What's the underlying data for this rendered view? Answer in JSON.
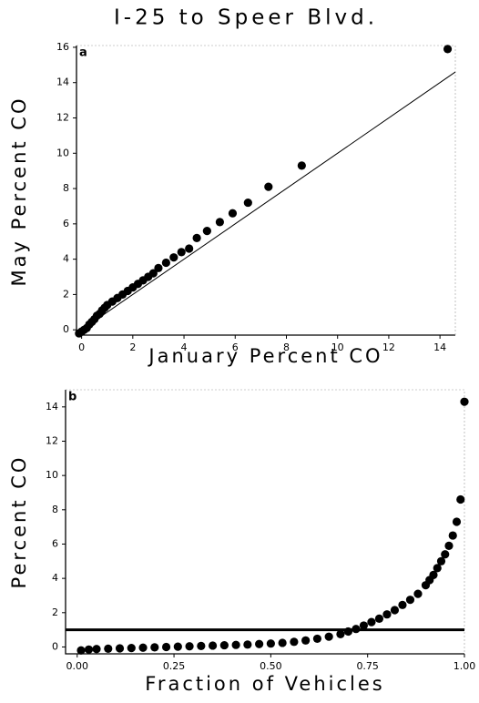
{
  "chart_data": [
    {
      "type": "scatter",
      "title": "I-25 to Speer Blvd.",
      "panel_label": "a",
      "x_label": "January Percent CO",
      "y_label": "May Percent CO",
      "xlim": [
        -0.2,
        14.6
      ],
      "ylim": [
        -0.3,
        16.1
      ],
      "xticks": [
        0,
        2,
        4,
        6,
        8,
        10,
        12,
        14
      ],
      "yticks": [
        0,
        2,
        4,
        6,
        8,
        10,
        12,
        14,
        16
      ],
      "identity_line": true,
      "color": "#000000",
      "x": [
        -0.1,
        0,
        0.1,
        0.2,
        0.3,
        0.4,
        0.5,
        0.6,
        0.7,
        0.8,
        0.9,
        1.0,
        1.2,
        1.4,
        1.6,
        1.8,
        2.0,
        2.2,
        2.4,
        2.6,
        2.8,
        3.0,
        3.3,
        3.6,
        3.9,
        4.2,
        4.5,
        4.9,
        5.4,
        5.9,
        6.5,
        7.3,
        8.6,
        14.3
      ],
      "values": [
        -0.2,
        -0.1,
        0,
        0.1,
        0.3,
        0.45,
        0.6,
        0.8,
        0.9,
        1.1,
        1.25,
        1.4,
        1.6,
        1.8,
        2.0,
        2.2,
        2.4,
        2.6,
        2.8,
        3.0,
        3.2,
        3.5,
        3.8,
        4.1,
        4.4,
        4.6,
        5.2,
        5.6,
        6.1,
        6.6,
        7.2,
        8.1,
        9.3,
        15.9
      ]
    },
    {
      "type": "scatter",
      "panel_label": "b",
      "x_label": "Fraction of Vehicles",
      "y_label": "Percent CO",
      "xlim": [
        -0.03,
        1.0
      ],
      "ylim": [
        -0.4,
        15
      ],
      "xticks": [
        {
          "value": 0,
          "label": "0.00"
        },
        {
          "value": 0.25,
          "label": "0.25"
        },
        {
          "value": 0.5,
          "label": "0.50"
        },
        {
          "value": 0.75,
          "label": "0.75"
        },
        {
          "value": 1,
          "label": "1.00"
        }
      ],
      "yticks": [
        0,
        2,
        4,
        6,
        8,
        10,
        12,
        14
      ],
      "hline": 1,
      "color": "#000000",
      "x": [
        0.01,
        0.03,
        0.05,
        0.08,
        0.11,
        0.14,
        0.17,
        0.2,
        0.23,
        0.26,
        0.29,
        0.32,
        0.35,
        0.38,
        0.41,
        0.44,
        0.47,
        0.5,
        0.53,
        0.56,
        0.59,
        0.62,
        0.65,
        0.68,
        0.7,
        0.72,
        0.74,
        0.76,
        0.78,
        0.8,
        0.82,
        0.84,
        0.86,
        0.88,
        0.9,
        0.91,
        0.92,
        0.93,
        0.94,
        0.95,
        0.96,
        0.97,
        0.98,
        0.99,
        1.0
      ],
      "values": [
        -0.2,
        -0.15,
        -0.12,
        -0.1,
        -0.08,
        -0.06,
        -0.04,
        -0.02,
        0,
        0.02,
        0.04,
        0.06,
        0.08,
        0.1,
        0.12,
        0.14,
        0.17,
        0.2,
        0.24,
        0.3,
        0.38,
        0.48,
        0.6,
        0.75,
        0.9,
        1.05,
        1.25,
        1.45,
        1.65,
        1.9,
        2.15,
        2.45,
        2.75,
        3.1,
        3.6,
        3.9,
        4.2,
        4.6,
        5.0,
        5.4,
        5.9,
        6.5,
        7.3,
        8.6,
        14.3
      ]
    }
  ]
}
